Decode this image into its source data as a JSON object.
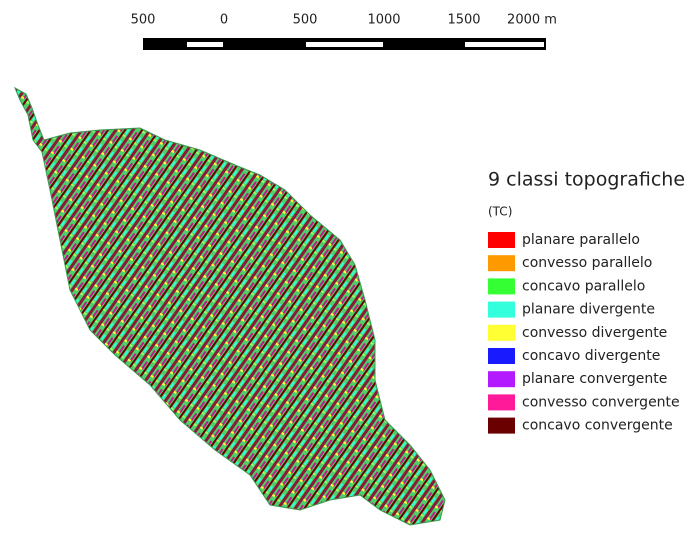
{
  "scale_bar": {
    "labels": [
      "500",
      "0",
      "500",
      "1000",
      "1500",
      "2000 m"
    ]
  },
  "legend": {
    "title": "9 classi topografiche",
    "subtitle": "(TC)",
    "items": [
      {
        "label": "planare parallelo",
        "color": "#ff0000"
      },
      {
        "label": "convesso parallelo",
        "color": "#ff9900"
      },
      {
        "label": "concavo parallelo",
        "color": "#33ff33"
      },
      {
        "label": "planare divergente",
        "color": "#33ffdd"
      },
      {
        "label": "convesso divergente",
        "color": "#ffff33"
      },
      {
        "label": "concavo divergente",
        "color": "#1a1aff"
      },
      {
        "label": "planare convergente",
        "color": "#b31aff"
      },
      {
        "label": "convesso convergente",
        "color": "#ff1a99"
      },
      {
        "label": "concavo convergente",
        "color": "#6b0000"
      }
    ]
  }
}
